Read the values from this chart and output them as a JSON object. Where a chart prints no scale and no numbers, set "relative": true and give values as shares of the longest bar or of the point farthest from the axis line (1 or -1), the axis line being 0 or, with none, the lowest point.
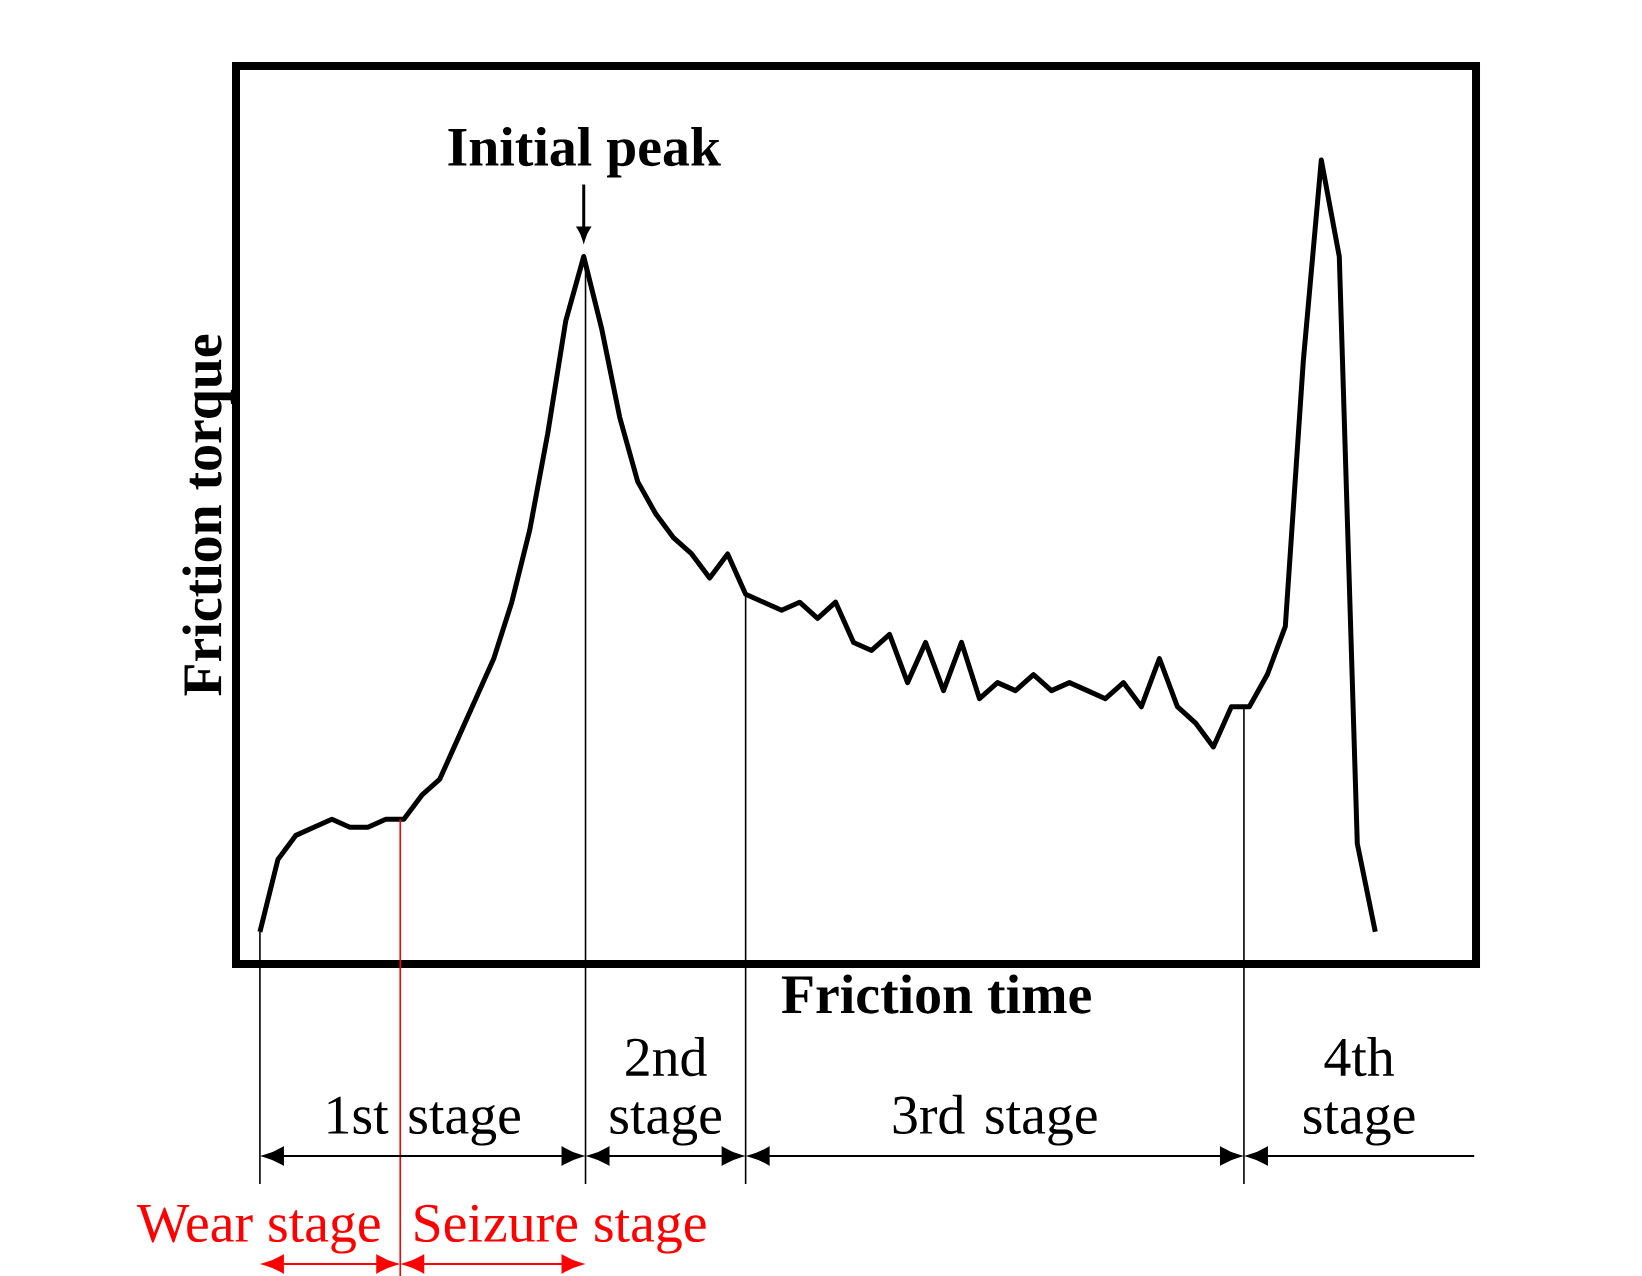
{
  "chart_data": {
    "type": "line",
    "relative": true,
    "xlabel": "Friction time",
    "ylabel": "Friction torque",
    "tick_labels": false,
    "marker": "none",
    "line_style": "solid",
    "color": "#000000",
    "categories": [
      null,
      null,
      null,
      null,
      null,
      null,
      null,
      null,
      null,
      null,
      null,
      null,
      null,
      null,
      null,
      null,
      null,
      null,
      null,
      null,
      null,
      null,
      null,
      null,
      null,
      null,
      null,
      null,
      null,
      null,
      null,
      null,
      null,
      null,
      null,
      null,
      null,
      null,
      null,
      null,
      null,
      null,
      null,
      null,
      null,
      null,
      null,
      null,
      null,
      null,
      null,
      null,
      null,
      null,
      null,
      null,
      null,
      null,
      null,
      null,
      null,
      null,
      null
    ],
    "values": [
      0.04,
      0.13,
      0.16,
      0.17,
      0.18,
      0.17,
      0.17,
      0.18,
      0.18,
      0.21,
      0.23,
      0.28,
      0.33,
      0.38,
      0.45,
      0.54,
      0.66,
      0.8,
      0.88,
      0.79,
      0.68,
      0.6,
      0.56,
      0.53,
      0.51,
      0.48,
      0.51,
      0.46,
      0.45,
      0.44,
      0.45,
      0.43,
      0.45,
      0.4,
      0.39,
      0.41,
      0.35,
      0.4,
      0.34,
      0.4,
      0.33,
      0.35,
      0.34,
      0.36,
      0.34,
      0.35,
      0.34,
      0.33,
      0.35,
      0.32,
      0.38,
      0.32,
      0.3,
      0.27,
      0.32,
      0.32,
      0.36,
      0.42,
      0.75,
      1.0,
      0.88,
      0.15,
      0.04
    ],
    "annotations": [
      {
        "text": "Initial peak",
        "y": 0.88
      },
      "1st stage",
      "2nd stage",
      "3rd stage",
      "4th stage",
      "Wear stage",
      "Seizure stage"
    ]
  }
}
